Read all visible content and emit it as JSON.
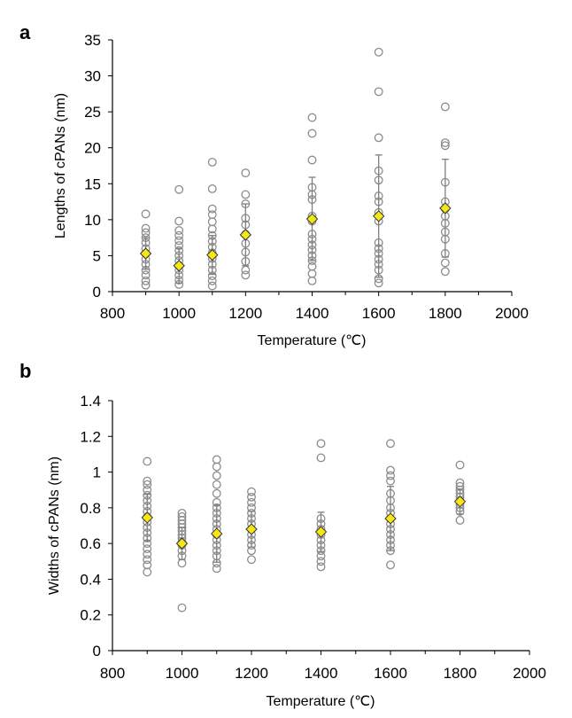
{
  "colors": {
    "point": "#8c8c8c",
    "mean_fill": "#f5e616",
    "errorbar": "#7f7f7f"
  },
  "chart_data": [
    {
      "type": "scatter",
      "panel_label": "a",
      "xlabel": "Temperature (℃)",
      "ylabel": "Lengths of cPANs (nm)",
      "xlim": [
        800,
        2000
      ],
      "ylim": [
        0,
        35
      ],
      "xticks": [
        800,
        1000,
        1200,
        1400,
        1600,
        1800,
        2000
      ],
      "xtick_labels": [
        "800",
        "1000",
        "1200",
        "1400",
        "1600",
        "1800",
        "2000"
      ],
      "yticks": [
        0,
        5,
        10,
        15,
        20,
        25,
        30,
        35
      ],
      "ytick_labels": [
        "0",
        "5",
        "10",
        "15",
        "20",
        "25",
        "30",
        "35"
      ],
      "series": [
        {
          "name": "individual",
          "points": [
            [
              900,
              10.8
            ],
            [
              900,
              8.8
            ],
            [
              900,
              8.2
            ],
            [
              900,
              7.5
            ],
            [
              900,
              6.8
            ],
            [
              900,
              6.0
            ],
            [
              900,
              5.3
            ],
            [
              900,
              4.5
            ],
            [
              900,
              3.8
            ],
            [
              900,
              3.0
            ],
            [
              900,
              2.3
            ],
            [
              900,
              1.5
            ],
            [
              900,
              0.9
            ],
            [
              1000,
              14.2
            ],
            [
              1000,
              9.8
            ],
            [
              1000,
              8.5
            ],
            [
              1000,
              7.8
            ],
            [
              1000,
              7.1
            ],
            [
              1000,
              6.4
            ],
            [
              1000,
              5.7
            ],
            [
              1000,
              5.0
            ],
            [
              1000,
              4.3
            ],
            [
              1000,
              3.6
            ],
            [
              1000,
              3.0
            ],
            [
              1000,
              2.3
            ],
            [
              1000,
              1.6
            ],
            [
              1000,
              1.0
            ],
            [
              1100,
              18.0
            ],
            [
              1100,
              14.3
            ],
            [
              1100,
              11.5
            ],
            [
              1100,
              10.7
            ],
            [
              1100,
              9.7
            ],
            [
              1100,
              8.7
            ],
            [
              1100,
              7.8
            ],
            [
              1100,
              7.0
            ],
            [
              1100,
              6.2
            ],
            [
              1100,
              5.4
            ],
            [
              1100,
              4.6
            ],
            [
              1100,
              3.8
            ],
            [
              1100,
              3.0
            ],
            [
              1100,
              2.2
            ],
            [
              1100,
              1.5
            ],
            [
              1100,
              0.8
            ],
            [
              1200,
              16.5
            ],
            [
              1200,
              13.5
            ],
            [
              1200,
              12.2
            ],
            [
              1200,
              10.2
            ],
            [
              1200,
              9.3
            ],
            [
              1200,
              8.0
            ],
            [
              1200,
              6.7
            ],
            [
              1200,
              5.5
            ],
            [
              1200,
              4.2
            ],
            [
              1200,
              3.0
            ],
            [
              1200,
              2.3
            ],
            [
              1400,
              24.2
            ],
            [
              1400,
              22.0
            ],
            [
              1400,
              18.3
            ],
            [
              1400,
              14.5
            ],
            [
              1400,
              13.5
            ],
            [
              1400,
              12.8
            ],
            [
              1400,
              10.5
            ],
            [
              1400,
              9.8
            ],
            [
              1400,
              8.0
            ],
            [
              1400,
              7.3
            ],
            [
              1400,
              6.5
            ],
            [
              1400,
              5.8
            ],
            [
              1400,
              5.0
            ],
            [
              1400,
              4.3
            ],
            [
              1400,
              3.5
            ],
            [
              1400,
              2.5
            ],
            [
              1400,
              1.5
            ],
            [
              1600,
              33.3
            ],
            [
              1600,
              27.8
            ],
            [
              1600,
              21.4
            ],
            [
              1600,
              16.8
            ],
            [
              1600,
              15.5
            ],
            [
              1600,
              13.3
            ],
            [
              1600,
              12.5
            ],
            [
              1600,
              11.0
            ],
            [
              1600,
              9.8
            ],
            [
              1600,
              6.8
            ],
            [
              1600,
              6.0
            ],
            [
              1600,
              5.3
            ],
            [
              1600,
              4.5
            ],
            [
              1600,
              3.8
            ],
            [
              1600,
              3.0
            ],
            [
              1600,
              1.8
            ],
            [
              1600,
              1.2
            ],
            [
              1800,
              25.7
            ],
            [
              1800,
              20.7
            ],
            [
              1800,
              20.3
            ],
            [
              1800,
              15.2
            ],
            [
              1800,
              12.5
            ],
            [
              1800,
              11.5
            ],
            [
              1800,
              10.5
            ],
            [
              1800,
              9.5
            ],
            [
              1800,
              8.3
            ],
            [
              1800,
              7.3
            ],
            [
              1800,
              5.3
            ],
            [
              1800,
              4.0
            ],
            [
              1800,
              2.8
            ]
          ]
        },
        {
          "name": "mean",
          "points": [
            [
              900,
              5.3
            ],
            [
              1000,
              3.6
            ],
            [
              1100,
              5.1
            ],
            [
              1200,
              7.9
            ],
            [
              1400,
              10.1
            ],
            [
              1600,
              10.5
            ],
            [
              1800,
              11.6
            ]
          ],
          "err": [
            2.2,
            2.4,
            2.7,
            4.3,
            5.8,
            8.5,
            6.8
          ]
        }
      ]
    },
    {
      "type": "scatter",
      "panel_label": "b",
      "xlabel": "Temperature (℃)",
      "ylabel": "Widths of cPANs (nm)",
      "xlim": [
        800,
        2000
      ],
      "ylim": [
        0,
        1.4
      ],
      "xticks": [
        800,
        1000,
        1200,
        1400,
        1600,
        1800,
        2000
      ],
      "xtick_labels": [
        "800",
        "1000",
        "1200",
        "1400",
        "1600",
        "1800",
        "2000"
      ],
      "yticks": [
        0,
        0.2,
        0.4,
        0.6,
        0.8,
        1.0,
        1.2,
        1.4
      ],
      "ytick_labels": [
        "0",
        "0.2",
        "0.4",
        "0.6",
        "0.8",
        "1",
        "1.2",
        "1.4"
      ],
      "series": [
        {
          "name": "individual",
          "points": [
            [
              900,
              1.06
            ],
            [
              900,
              0.95
            ],
            [
              900,
              0.93
            ],
            [
              900,
              0.9
            ],
            [
              900,
              0.87
            ],
            [
              900,
              0.84
            ],
            [
              900,
              0.81
            ],
            [
              900,
              0.78
            ],
            [
              900,
              0.75
            ],
            [
              900,
              0.72
            ],
            [
              900,
              0.69
            ],
            [
              900,
              0.66
            ],
            [
              900,
              0.63
            ],
            [
              900,
              0.6
            ],
            [
              900,
              0.57
            ],
            [
              900,
              0.54
            ],
            [
              900,
              0.51
            ],
            [
              900,
              0.48
            ],
            [
              900,
              0.44
            ],
            [
              1000,
              0.77
            ],
            [
              1000,
              0.75
            ],
            [
              1000,
              0.73
            ],
            [
              1000,
              0.71
            ],
            [
              1000,
              0.69
            ],
            [
              1000,
              0.67
            ],
            [
              1000,
              0.65
            ],
            [
              1000,
              0.63
            ],
            [
              1000,
              0.61
            ],
            [
              1000,
              0.59
            ],
            [
              1000,
              0.56
            ],
            [
              1000,
              0.53
            ],
            [
              1000,
              0.49
            ],
            [
              1000,
              0.24
            ],
            [
              1100,
              1.07
            ],
            [
              1100,
              1.03
            ],
            [
              1100,
              0.98
            ],
            [
              1100,
              0.93
            ],
            [
              1100,
              0.88
            ],
            [
              1100,
              0.83
            ],
            [
              1100,
              0.8
            ],
            [
              1100,
              0.77
            ],
            [
              1100,
              0.74
            ],
            [
              1100,
              0.71
            ],
            [
              1100,
              0.68
            ],
            [
              1100,
              0.65
            ],
            [
              1100,
              0.62
            ],
            [
              1100,
              0.59
            ],
            [
              1100,
              0.56
            ],
            [
              1100,
              0.53
            ],
            [
              1100,
              0.49
            ],
            [
              1100,
              0.46
            ],
            [
              1200,
              0.89
            ],
            [
              1200,
              0.86
            ],
            [
              1200,
              0.83
            ],
            [
              1200,
              0.8
            ],
            [
              1200,
              0.77
            ],
            [
              1200,
              0.74
            ],
            [
              1200,
              0.71
            ],
            [
              1200,
              0.68
            ],
            [
              1200,
              0.65
            ],
            [
              1200,
              0.62
            ],
            [
              1200,
              0.59
            ],
            [
              1200,
              0.56
            ],
            [
              1200,
              0.51
            ],
            [
              1400,
              1.16
            ],
            [
              1400,
              1.08
            ],
            [
              1400,
              0.74
            ],
            [
              1400,
              0.71
            ],
            [
              1400,
              0.68
            ],
            [
              1400,
              0.65
            ],
            [
              1400,
              0.62
            ],
            [
              1400,
              0.59
            ],
            [
              1400,
              0.56
            ],
            [
              1400,
              0.53
            ],
            [
              1400,
              0.5
            ],
            [
              1400,
              0.47
            ],
            [
              1600,
              1.16
            ],
            [
              1600,
              1.01
            ],
            [
              1600,
              0.98
            ],
            [
              1600,
              0.95
            ],
            [
              1600,
              0.88
            ],
            [
              1600,
              0.84
            ],
            [
              1600,
              0.8
            ],
            [
              1600,
              0.77
            ],
            [
              1600,
              0.74
            ],
            [
              1600,
              0.71
            ],
            [
              1600,
              0.68
            ],
            [
              1600,
              0.65
            ],
            [
              1600,
              0.62
            ],
            [
              1600,
              0.59
            ],
            [
              1600,
              0.56
            ],
            [
              1600,
              0.48
            ],
            [
              1800,
              1.04
            ],
            [
              1800,
              0.94
            ],
            [
              1800,
              0.92
            ],
            [
              1800,
              0.9
            ],
            [
              1800,
              0.88
            ],
            [
              1800,
              0.86
            ],
            [
              1800,
              0.84
            ],
            [
              1800,
              0.82
            ],
            [
              1800,
              0.8
            ],
            [
              1800,
              0.78
            ],
            [
              1800,
              0.73
            ]
          ]
        },
        {
          "name": "mean",
          "points": [
            [
              900,
              0.745
            ],
            [
              1000,
              0.6
            ],
            [
              1100,
              0.655
            ],
            [
              1200,
              0.68
            ],
            [
              1400,
              0.665
            ],
            [
              1600,
              0.74
            ],
            [
              1800,
              0.835
            ]
          ],
          "err": [
            0.13,
            0.09,
            0.16,
            0.1,
            0.11,
            0.18,
            0.07
          ]
        }
      ]
    }
  ]
}
